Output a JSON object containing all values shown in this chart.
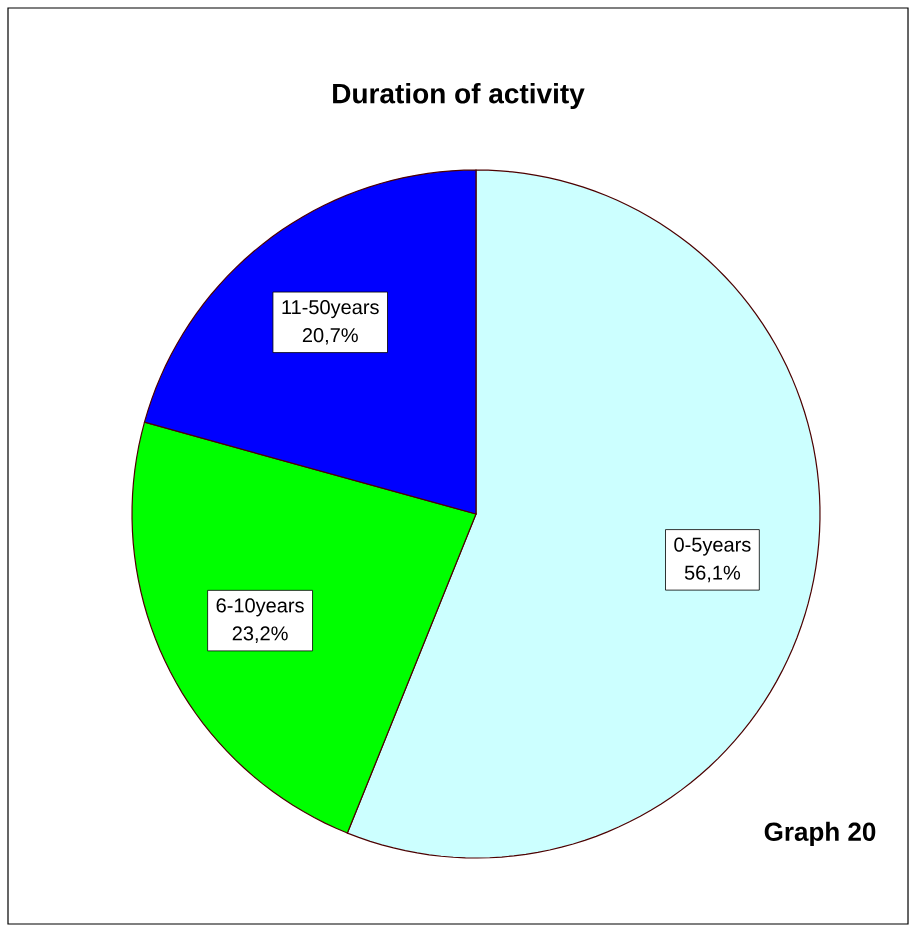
{
  "chart_data": {
    "type": "pie",
    "title": "Duration of activity",
    "categories": [
      "0-5years",
      "6-10years",
      "11-50years"
    ],
    "values": [
      56.1,
      23.2,
      20.7
    ],
    "value_labels": [
      "56,1%",
      "23,2%",
      "20,7%"
    ],
    "colors": [
      "#ccffff",
      "#00ff00",
      "#0000ff"
    ],
    "annotations": [
      "Graph 20"
    ]
  }
}
